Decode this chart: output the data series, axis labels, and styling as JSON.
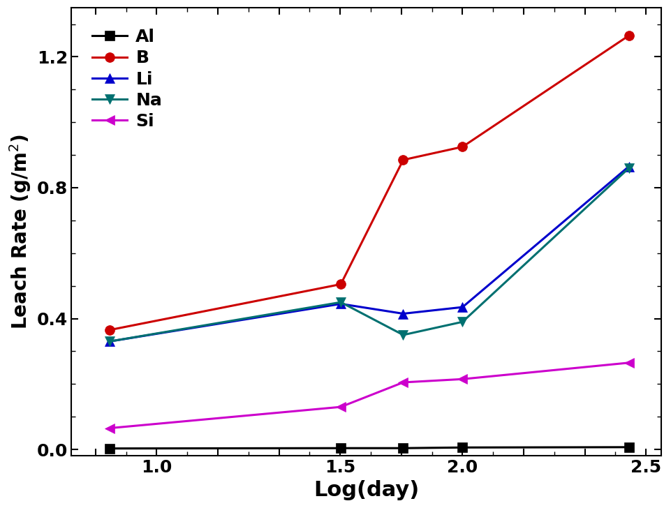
{
  "x": [
    0.845,
    1.602,
    1.806,
    2.0,
    2.544
  ],
  "Al": [
    0.003,
    0.004,
    0.004,
    0.006,
    0.007
  ],
  "B": [
    0.365,
    0.505,
    0.885,
    0.925,
    1.265
  ],
  "Li": [
    0.33,
    0.445,
    0.415,
    0.435,
    0.865
  ],
  "Na": [
    0.33,
    0.45,
    0.35,
    0.39,
    0.86
  ],
  "Si": [
    0.065,
    0.13,
    0.205,
    0.215,
    0.265
  ],
  "colors": {
    "Al": "#000000",
    "B": "#cc0000",
    "Li": "#0000cc",
    "Na": "#007070",
    "Si": "#cc00cc"
  },
  "markers": {
    "Al": "s",
    "B": "o",
    "Li": "^",
    "Na": "v",
    "Si": "<"
  },
  "xlabel": "Log(day)",
  "ylabel": "Leach Rate (g/m$^2$)",
  "xlim": [
    0.72,
    2.65
  ],
  "ylim": [
    -0.02,
    1.35
  ],
  "yticks": [
    0.0,
    0.4,
    0.8,
    1.2
  ],
  "legend_labels": [
    "Al",
    "B",
    "Li",
    "Na",
    "Si"
  ],
  "markersize": 10,
  "linewidth": 2.2,
  "xlabel_fontsize": 22,
  "ylabel_fontsize": 20,
  "tick_fontsize": 18,
  "legend_fontsize": 18
}
